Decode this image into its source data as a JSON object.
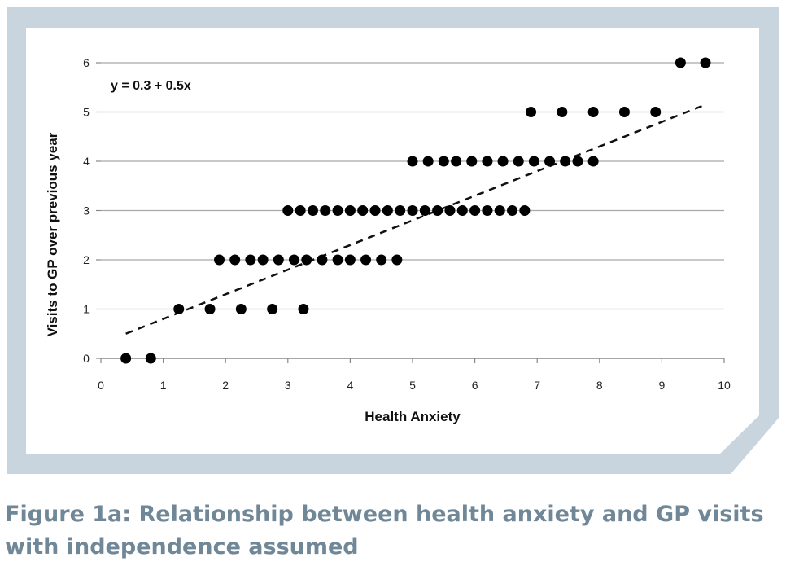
{
  "figure": {
    "caption": "Figure 1a: Relationship between health anxiety and GP visits with independence assumed",
    "frame_color": "#c9d5de",
    "caption_color": "#6f8797"
  },
  "chart_data": {
    "type": "scatter",
    "xlabel": "Health Anxiety",
    "ylabel": "Visits to GP over previous year",
    "xlim": [
      0,
      10
    ],
    "ylim": [
      0,
      6
    ],
    "xticks": [
      "0",
      "1",
      "2",
      "3",
      "4",
      "5",
      "6",
      "7",
      "8",
      "9",
      "10"
    ],
    "yticks": [
      "0",
      "1",
      "2",
      "3",
      "4",
      "5",
      "6"
    ],
    "grid": "horizontal",
    "annotation": "y = 0.3 + 0.5x",
    "trendline": {
      "intercept": 0.3,
      "slope": 0.5,
      "x_range": [
        0.4,
        9.7
      ],
      "style": "dashed"
    },
    "points": [
      {
        "x": 0.4,
        "y": 0
      },
      {
        "x": 0.8,
        "y": 0
      },
      {
        "x": 1.25,
        "y": 1
      },
      {
        "x": 1.75,
        "y": 1
      },
      {
        "x": 2.25,
        "y": 1
      },
      {
        "x": 2.75,
        "y": 1
      },
      {
        "x": 3.25,
        "y": 1
      },
      {
        "x": 1.9,
        "y": 2
      },
      {
        "x": 2.15,
        "y": 2
      },
      {
        "x": 2.4,
        "y": 2
      },
      {
        "x": 2.6,
        "y": 2
      },
      {
        "x": 2.85,
        "y": 2
      },
      {
        "x": 3.1,
        "y": 2
      },
      {
        "x": 3.3,
        "y": 2
      },
      {
        "x": 3.55,
        "y": 2
      },
      {
        "x": 3.8,
        "y": 2
      },
      {
        "x": 4.0,
        "y": 2
      },
      {
        "x": 4.25,
        "y": 2
      },
      {
        "x": 4.5,
        "y": 2
      },
      {
        "x": 4.75,
        "y": 2
      },
      {
        "x": 3.0,
        "y": 3
      },
      {
        "x": 3.2,
        "y": 3
      },
      {
        "x": 3.4,
        "y": 3
      },
      {
        "x": 3.6,
        "y": 3
      },
      {
        "x": 3.8,
        "y": 3
      },
      {
        "x": 4.0,
        "y": 3
      },
      {
        "x": 4.2,
        "y": 3
      },
      {
        "x": 4.4,
        "y": 3
      },
      {
        "x": 4.6,
        "y": 3
      },
      {
        "x": 4.8,
        "y": 3
      },
      {
        "x": 5.0,
        "y": 3
      },
      {
        "x": 5.2,
        "y": 3
      },
      {
        "x": 5.4,
        "y": 3
      },
      {
        "x": 5.6,
        "y": 3
      },
      {
        "x": 5.8,
        "y": 3
      },
      {
        "x": 6.0,
        "y": 3
      },
      {
        "x": 6.2,
        "y": 3
      },
      {
        "x": 6.4,
        "y": 3
      },
      {
        "x": 6.6,
        "y": 3
      },
      {
        "x": 6.8,
        "y": 3
      },
      {
        "x": 5.0,
        "y": 4
      },
      {
        "x": 5.25,
        "y": 4
      },
      {
        "x": 5.5,
        "y": 4
      },
      {
        "x": 5.7,
        "y": 4
      },
      {
        "x": 5.95,
        "y": 4
      },
      {
        "x": 6.2,
        "y": 4
      },
      {
        "x": 6.45,
        "y": 4
      },
      {
        "x": 6.7,
        "y": 4
      },
      {
        "x": 6.95,
        "y": 4
      },
      {
        "x": 7.2,
        "y": 4
      },
      {
        "x": 7.45,
        "y": 4
      },
      {
        "x": 7.65,
        "y": 4
      },
      {
        "x": 7.9,
        "y": 4
      },
      {
        "x": 6.9,
        "y": 5
      },
      {
        "x": 7.4,
        "y": 5
      },
      {
        "x": 7.9,
        "y": 5
      },
      {
        "x": 8.4,
        "y": 5
      },
      {
        "x": 8.9,
        "y": 5
      },
      {
        "x": 9.3,
        "y": 6
      },
      {
        "x": 9.7,
        "y": 6
      }
    ]
  }
}
